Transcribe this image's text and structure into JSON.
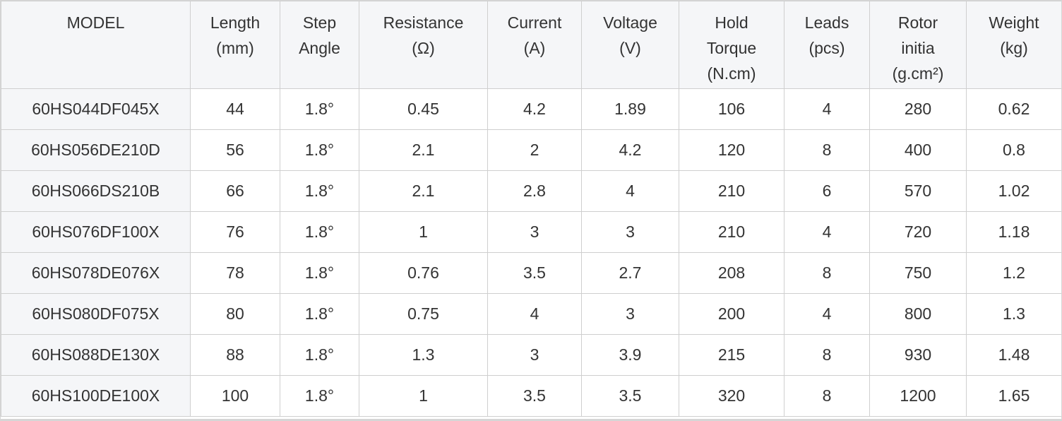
{
  "table": {
    "header": [
      "MODEL",
      "Length\n(mm)",
      "Step\nAngle",
      "Resistance\n(Ω)",
      "Current\n(A)",
      "Voltage\n(V)",
      "Hold\nTorque\n(N.cm)",
      "Leads\n(pcs)",
      "Rotor\ninitia\n(g.cm²)",
      "Weight\n(kg)"
    ],
    "rows": [
      [
        "60HS044DF045X",
        "44",
        "1.8°",
        "0.45",
        "4.2",
        "1.89",
        "106",
        "4",
        "280",
        "0.62"
      ],
      [
        "60HS056DE210D",
        "56",
        "1.8°",
        "2.1",
        "2",
        "4.2",
        "120",
        "8",
        "400",
        "0.8"
      ],
      [
        "60HS066DS210B",
        "66",
        "1.8°",
        "2.1",
        "2.8",
        "4",
        "210",
        "6",
        "570",
        "1.02"
      ],
      [
        "60HS076DF100X",
        "76",
        "1.8°",
        "1",
        "3",
        "3",
        "210",
        "4",
        "720",
        "1.18"
      ],
      [
        "60HS078DE076X",
        "78",
        "1.8°",
        "0.76",
        "3.5",
        "2.7",
        "208",
        "8",
        "750",
        "1.2"
      ],
      [
        "60HS080DF075X",
        "80",
        "1.8°",
        "0.75",
        "4",
        "3",
        "200",
        "4",
        "800",
        "1.3"
      ],
      [
        "60HS088DE130X",
        "88",
        "1.8°",
        "1.3",
        "3",
        "3.9",
        "215",
        "8",
        "930",
        "1.48"
      ],
      [
        "60HS100DE100X",
        "100",
        "1.8°",
        "1",
        "3.5",
        "3.5",
        "320",
        "8",
        "1200",
        "1.65"
      ]
    ]
  }
}
